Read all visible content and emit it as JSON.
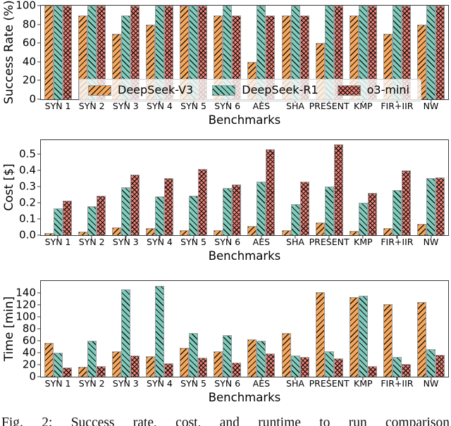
{
  "figure": {
    "caption": "Fig. 2: Success rate, cost, and runtime to run comparison",
    "legend": [
      {
        "label": "DeepSeek-V3",
        "color": "#F6A75B",
        "hatch": "slash"
      },
      {
        "label": "DeepSeek-R1",
        "color": "#7FCCBC",
        "hatch": "back"
      },
      {
        "label": "o3-mini",
        "color": "#F08074",
        "hatch": "cross"
      }
    ]
  },
  "chart_data": [
    {
      "type": "bar",
      "title": "",
      "ylabel": "Success Rate (%)",
      "xlabel": "Benchmarks",
      "categories": [
        "SYN 1",
        "SYN 2",
        "SYN 3",
        "SYN 4",
        "SYN 5",
        "SYN 6",
        "AES",
        "SHA",
        "PRESENT",
        "KMP",
        "FIR+IIR",
        "NW"
      ],
      "series": [
        {
          "name": "DeepSeek-V3",
          "color": "#F6A75B",
          "hatch": "slash",
          "values": [
            100,
            90,
            70,
            80,
            100,
            90,
            40,
            90,
            60,
            90,
            70,
            80
          ]
        },
        {
          "name": "DeepSeek-R1",
          "color": "#7FCCBC",
          "hatch": "back",
          "values": [
            100,
            100,
            90,
            100,
            100,
            100,
            100,
            100,
            100,
            100,
            100,
            100
          ]
        },
        {
          "name": "o3-mini",
          "color": "#F08074",
          "hatch": "cross",
          "values": [
            100,
            100,
            100,
            100,
            100,
            90,
            90,
            90,
            100,
            100,
            100,
            100
          ]
        }
      ],
      "ylim": [
        0,
        100
      ],
      "yticks": [
        "0",
        "20",
        "40",
        "60",
        "80",
        "100"
      ],
      "grid": false,
      "legend_position": "upper center inside"
    },
    {
      "type": "bar",
      "title": "",
      "ylabel": "Cost [$]",
      "xlabel": "Benchmarks",
      "categories": [
        "SYN 1",
        "SYN 2",
        "SYN 3",
        "SYN 4",
        "SYN 5",
        "SYN 6",
        "AES",
        "SHA",
        "PRESENT",
        "KMP",
        "FIR+IIR",
        "NW"
      ],
      "series": [
        {
          "name": "DeepSeek-V3",
          "color": "#F6A75B",
          "hatch": "slash",
          "values": [
            0.015,
            0.02,
            0.05,
            0.045,
            0.03,
            0.03,
            0.055,
            0.03,
            0.08,
            0.025,
            0.045,
            0.07
          ]
        },
        {
          "name": "DeepSeek-R1",
          "color": "#7FCCBC",
          "hatch": "back",
          "values": [
            0.165,
            0.18,
            0.295,
            0.24,
            0.245,
            0.29,
            0.33,
            0.19,
            0.3,
            0.2,
            0.28,
            0.35
          ]
        },
        {
          "name": "o3-mini",
          "color": "#F08074",
          "hatch": "cross",
          "values": [
            0.215,
            0.245,
            0.375,
            0.35,
            0.41,
            0.315,
            0.53,
            0.33,
            0.56,
            0.26,
            0.4,
            0.355
          ]
        }
      ],
      "ylim": [
        0,
        0.585
      ],
      "yticks": [
        "0.0",
        "0.1",
        "0.2",
        "0.3",
        "0.4",
        "0.5"
      ],
      "grid": false,
      "legend_position": "none"
    },
    {
      "type": "bar",
      "title": "",
      "ylabel": "Time [min]",
      "xlabel": "Benchmarks",
      "categories": [
        "SYN 1",
        "SYN 2",
        "SYN 3",
        "SYN 4",
        "SYN 5",
        "SYN 6",
        "AES",
        "SHA",
        "PRESENT",
        "KMP",
        "FIR+IIR",
        "NW"
      ],
      "series": [
        {
          "name": "DeepSeek-V3",
          "color": "#F6A75B",
          "hatch": "slash",
          "values": [
            57,
            17,
            43,
            34,
            48,
            43,
            62,
            73,
            142,
            133,
            121,
            125
          ]
        },
        {
          "name": "DeepSeek-R1",
          "color": "#7FCCBC",
          "hatch": "back",
          "values": [
            40,
            60,
            146,
            152,
            73,
            70,
            60,
            35,
            43,
            136,
            33,
            46
          ]
        },
        {
          "name": "o3-mini",
          "color": "#F08074",
          "hatch": "cross",
          "values": [
            15,
            18,
            36,
            23,
            32,
            24,
            39,
            33,
            31,
            18,
            21,
            37
          ]
        }
      ],
      "ylim": [
        0,
        160
      ],
      "yticks": [
        "0",
        "20",
        "40",
        "60",
        "80",
        "100",
        "120",
        "140"
      ],
      "grid": false,
      "legend_position": "none"
    }
  ]
}
